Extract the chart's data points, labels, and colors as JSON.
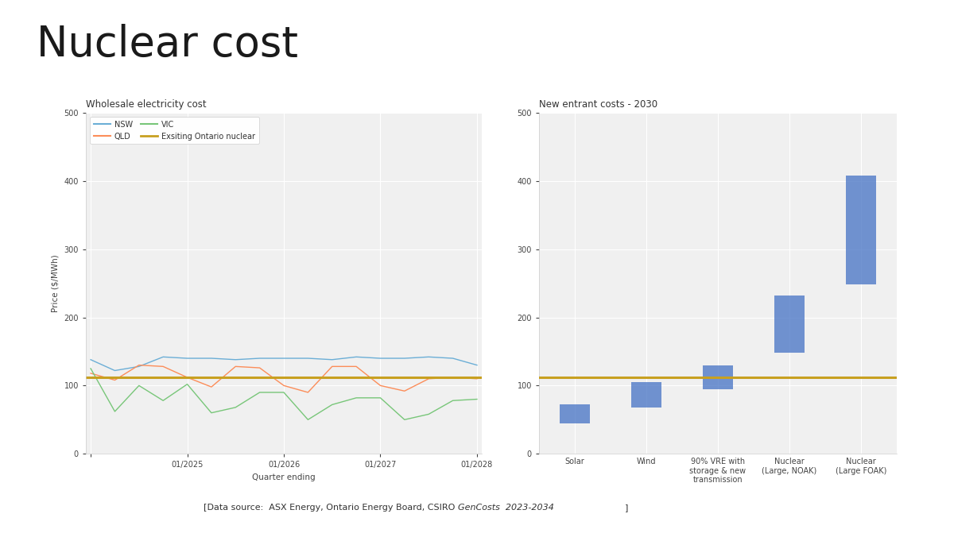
{
  "title": "Nuclear cost",
  "title_fontsize": 38,
  "background_color": "#ffffff",
  "gold_bar_color": "#e8b800",
  "left_chart": {
    "title": "Wholesale electricity cost",
    "xlabel": "Quarter ending",
    "ylabel": "Price ($/MWh)",
    "ylim": [
      0,
      500
    ],
    "yticks": [
      0,
      100,
      200,
      300,
      400,
      500
    ],
    "ontario_nuclear_line": 112,
    "ontario_color": "#c8a020",
    "legend_labels": [
      "NSW",
      "QLD",
      "VIC",
      "Exsiting Ontario nuclear"
    ],
    "nsw_color": "#6baed6",
    "qld_color": "#fc8d59",
    "vic_color": "#78c679",
    "x_labels": [
      "01/2025",
      "01/2026",
      "01/2027",
      "01/2028"
    ],
    "nsw_data": [
      138,
      122,
      128,
      142,
      140,
      140,
      138,
      140,
      140,
      140,
      138,
      142,
      140,
      140,
      142,
      140,
      130
    ],
    "qld_data": [
      118,
      108,
      130,
      128,
      112,
      98,
      128,
      126,
      100,
      90,
      128,
      128,
      100,
      92,
      110,
      112,
      110
    ],
    "vic_data": [
      125,
      62,
      100,
      78,
      102,
      60,
      68,
      90,
      90,
      50,
      72,
      82,
      82,
      50,
      58,
      78,
      80
    ]
  },
  "right_chart": {
    "title": "New entrant costs - 2030",
    "ylim": [
      0,
      500
    ],
    "yticks": [
      0,
      100,
      200,
      300,
      400,
      500
    ],
    "ontario_nuclear_line": 112,
    "ontario_color": "#c8a020",
    "bar_color": "#4472c4",
    "bar_alpha": 0.75,
    "categories": [
      "Solar",
      "Wind",
      "90% VRE with\nstorage & new\ntransmission",
      "Nuclear\n(Large, NOAK)",
      "Nuclear\n(Large FOAK)"
    ],
    "bar_low": [
      45,
      68,
      95,
      148,
      248
    ],
    "bar_high": [
      72,
      105,
      130,
      232,
      408
    ]
  },
  "footer_normal1": "[Data source:  ASX Energy, Ontario Energy Board, CSIRO ",
  "footer_italic": "GenCosts  2023-2034",
  "footer_normal2": "]",
  "unsw_yellow": "#f5c400",
  "chart_bg": "#f0f0f0"
}
